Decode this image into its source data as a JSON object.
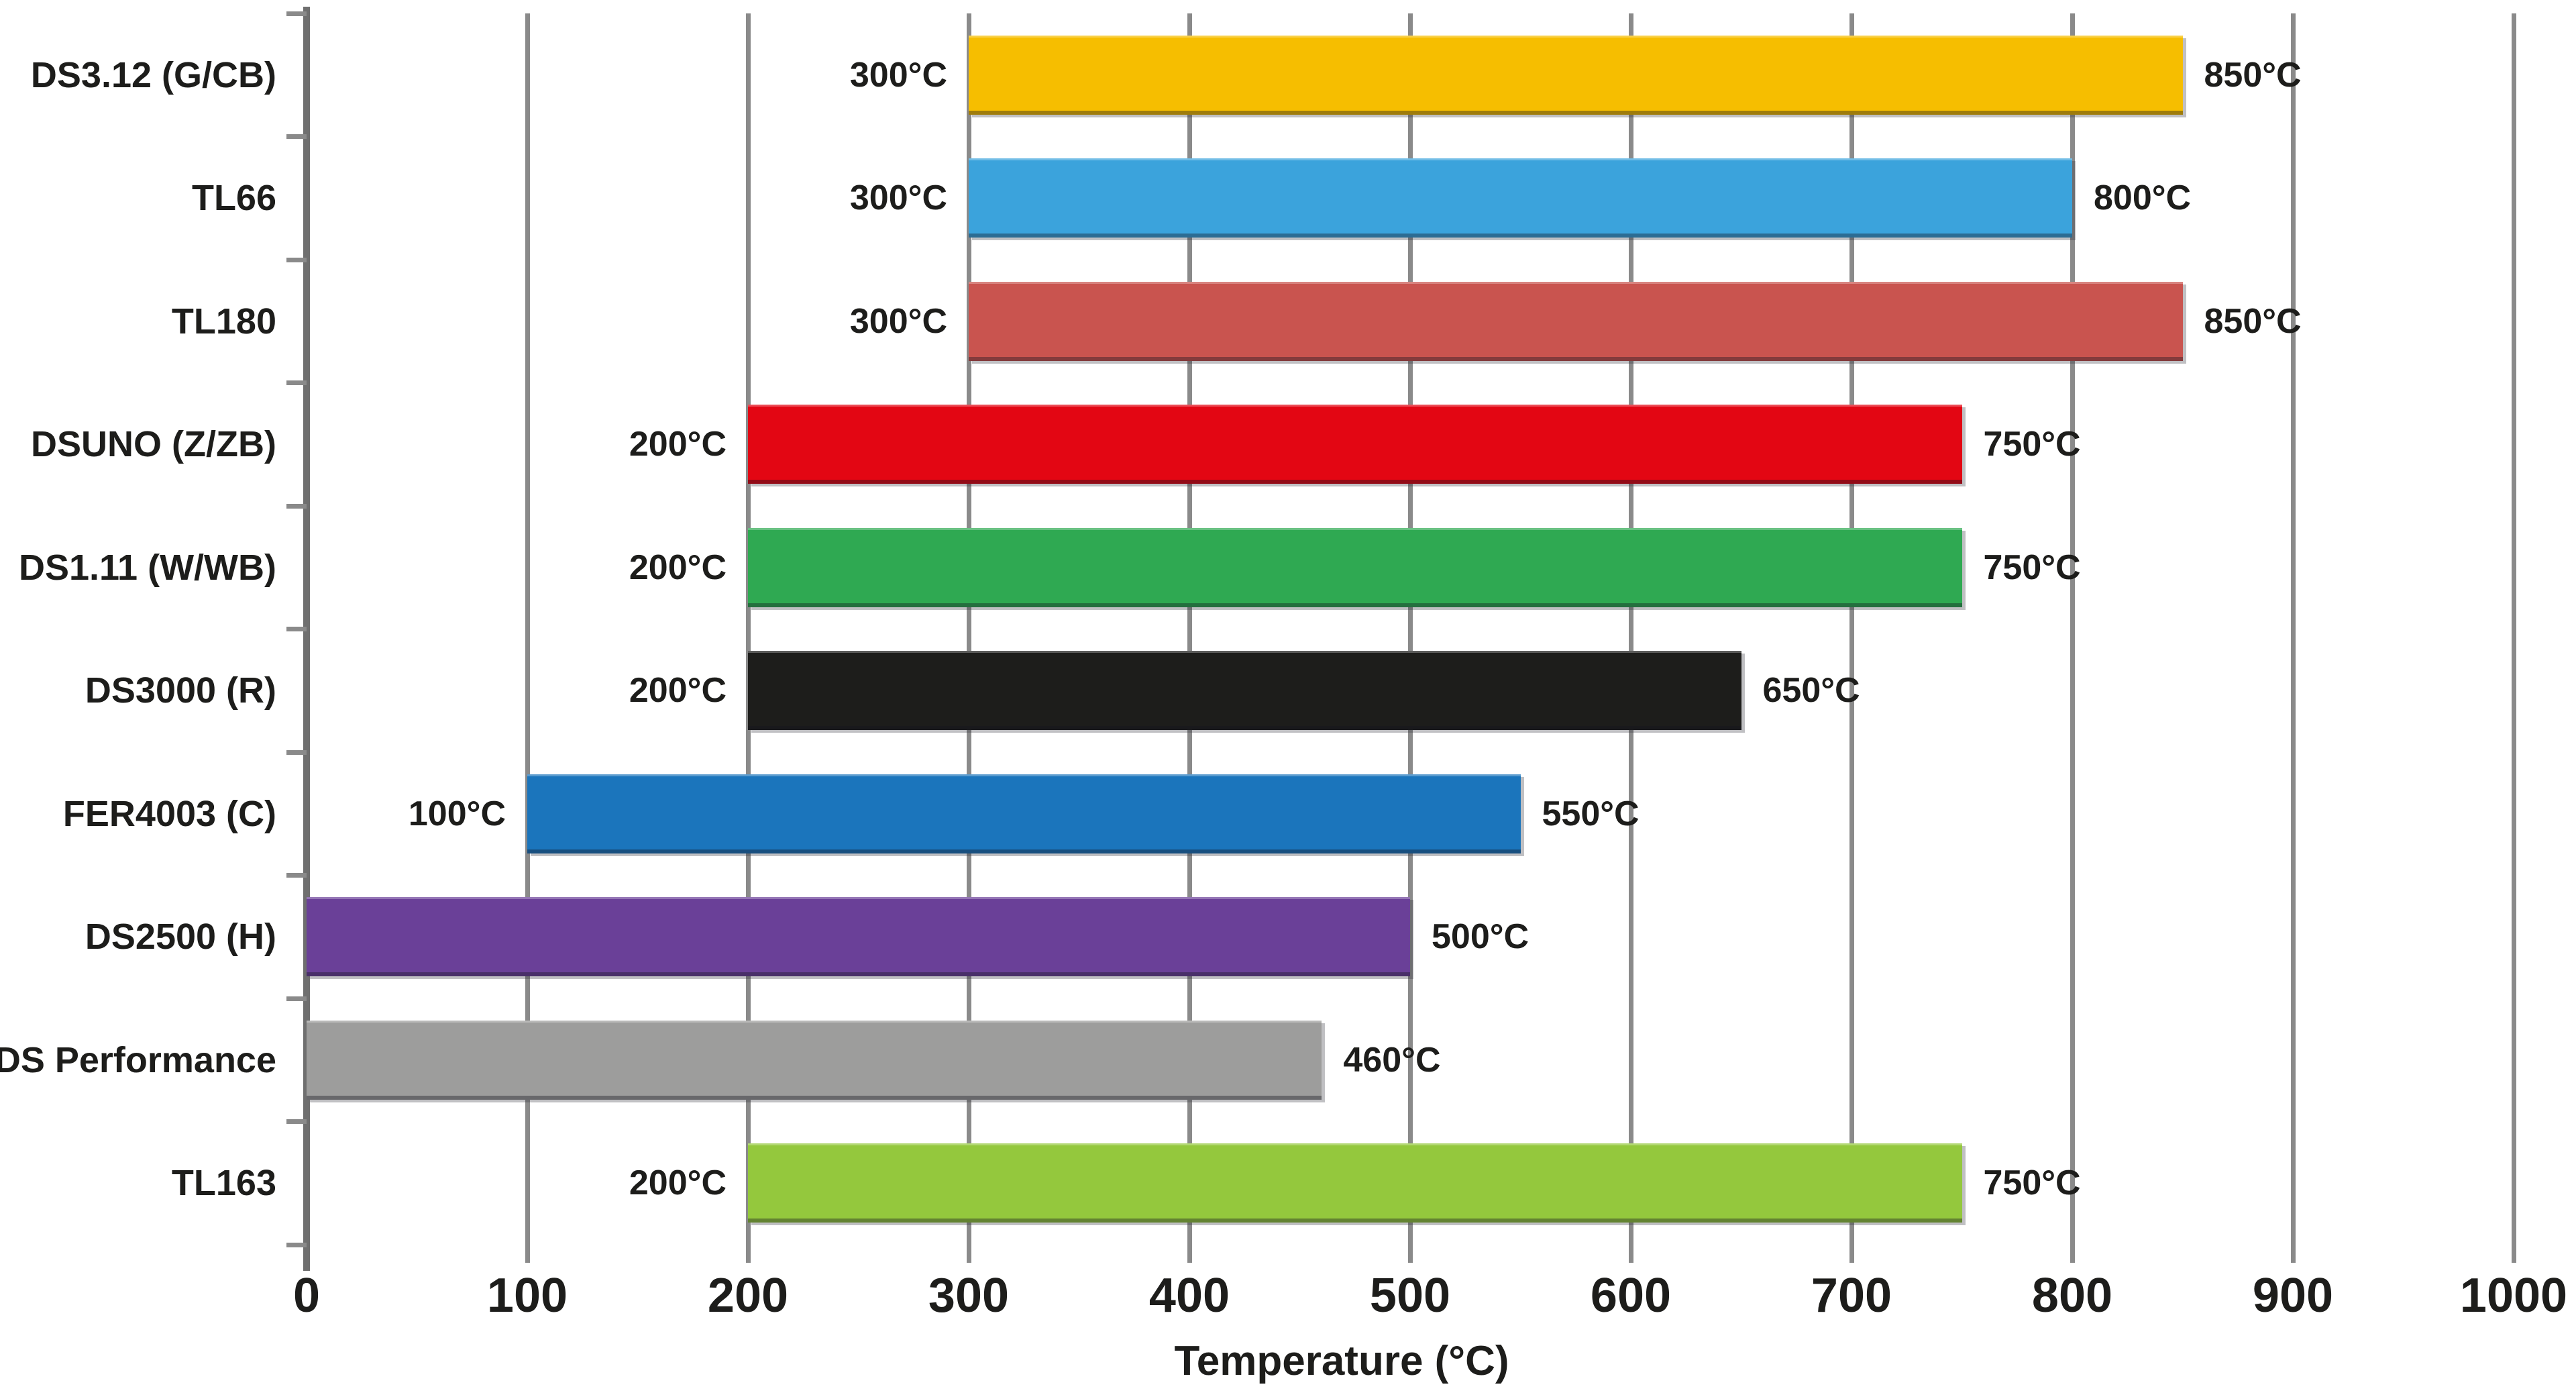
{
  "xaxis": {
    "title": "Temperature (°C)",
    "tick_labels": [
      "0",
      "100",
      "200",
      "300",
      "400",
      "500",
      "600",
      "700",
      "800",
      "900",
      "1000"
    ]
  },
  "colors": {
    "text": "#1D1D1B",
    "gridline": "#8A8A8A",
    "axis_line": "#6F6F6F",
    "background": "#FFFFFF"
  },
  "chart_data": {
    "type": "bar",
    "orientation": "horizontal-range",
    "title": "",
    "xlabel": "Temperature (°C)",
    "ylabel": "",
    "xlim": [
      0,
      1000
    ],
    "x_ticks": [
      0,
      100,
      200,
      300,
      400,
      500,
      600,
      700,
      800,
      900,
      1000
    ],
    "grid": true,
    "legend": "none",
    "categories": [
      "DS3.12 (G/CB)",
      "TL66",
      "TL180",
      "DSUNO (Z/ZB)",
      "DS1.11 (W/WB)",
      "DS3000 (R)",
      "FER4003 (C)",
      "DS2500 (H)",
      "DS Performance",
      "TL163"
    ],
    "bars": [
      {
        "label": "DS3.12 (G/CB)",
        "min": 300,
        "max": 850,
        "min_label": "300°C",
        "max_label": "850°C",
        "color": "#F6BE00"
      },
      {
        "label": "TL66",
        "min": 300,
        "max": 800,
        "min_label": "300°C",
        "max_label": "800°C",
        "color": "#3BA3DC"
      },
      {
        "label": "TL180",
        "min": 300,
        "max": 850,
        "min_label": "300°C",
        "max_label": "850°C",
        "color": "#C9544F"
      },
      {
        "label": "DSUNO (Z/ZB)",
        "min": 200,
        "max": 750,
        "min_label": "200°C",
        "max_label": "750°C",
        "color": "#E30613"
      },
      {
        "label": "DS1.11 (W/WB)",
        "min": 200,
        "max": 750,
        "min_label": "200°C",
        "max_label": "750°C",
        "color": "#2FA952"
      },
      {
        "label": "DS3000 (R)",
        "min": 200,
        "max": 650,
        "min_label": "200°C",
        "max_label": "650°C",
        "color": "#1D1D1B"
      },
      {
        "label": "FER4003 (C)",
        "min": 100,
        "max": 550,
        "min_label": "100°C",
        "max_label": "550°C",
        "color": "#1B75BC"
      },
      {
        "label": "DS2500 (H)",
        "min": 0,
        "max": 500,
        "min_label": null,
        "max_label": "500°C",
        "color": "#6A4098"
      },
      {
        "label": "DS Performance",
        "min": 0,
        "max": 460,
        "min_label": null,
        "max_label": "460°C",
        "color": "#9D9D9C"
      },
      {
        "label": "TL163",
        "min": 200,
        "max": 750,
        "min_label": "200°C",
        "max_label": "750°C",
        "color": "#94C83D"
      }
    ]
  }
}
